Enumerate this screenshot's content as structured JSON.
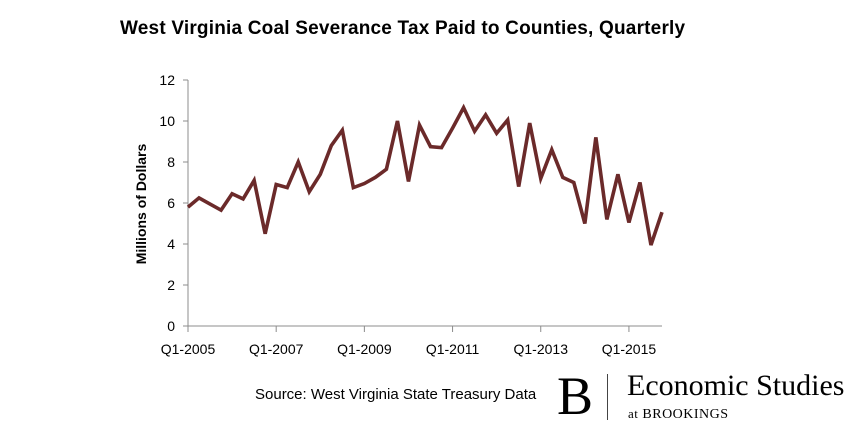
{
  "chart_data": {
    "type": "line",
    "title": "West Virginia Coal Severance Tax Paid to Counties, Quarterly",
    "xlabel": "",
    "ylabel": "Millions of Dollars",
    "ylim": [
      0,
      12
    ],
    "yticks": [
      "0",
      "2",
      "4",
      "6",
      "8",
      "10",
      "12"
    ],
    "xtick_labels": [
      "Q1-2005",
      "Q1-2007",
      "Q1-2009",
      "Q1-2011",
      "Q1-2013",
      "Q1-2015"
    ],
    "xtick_positions": [
      0,
      8,
      16,
      24,
      32,
      40
    ],
    "n_quarters": 44,
    "series": [
      {
        "name": "Coal severance tax paid to counties",
        "color": "#6b2a2a",
        "values": [
          5.8,
          6.25,
          5.95,
          5.65,
          6.45,
          6.2,
          7.1,
          4.5,
          6.9,
          6.75,
          8.0,
          6.55,
          7.4,
          8.8,
          9.55,
          6.75,
          6.95,
          7.25,
          7.65,
          10.0,
          7.05,
          9.8,
          8.75,
          8.7,
          9.65,
          10.65,
          9.5,
          10.3,
          9.4,
          10.05,
          6.8,
          9.9,
          7.2,
          8.6,
          7.25,
          7.0,
          5.0,
          9.2,
          5.2,
          7.4,
          5.05,
          7.0,
          3.95,
          5.55
        ]
      }
    ]
  },
  "source_text": "Source: West Virginia State Treasury Data",
  "logo": {
    "letter": "B",
    "main": "Economic Studies",
    "sub_at": "at",
    "sub_org": "BROOKINGS"
  }
}
